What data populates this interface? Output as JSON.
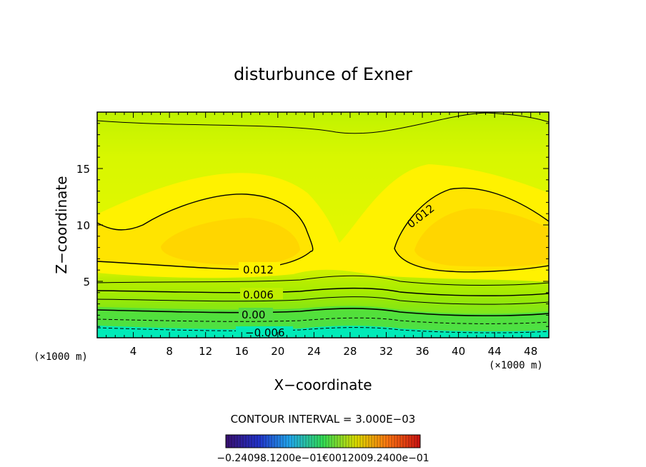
{
  "chart_data": {
    "type": "contour",
    "title": "disturbunce of Exner",
    "xlabel": "X−coordinate",
    "ylabel": "Z−coordinate",
    "x_unit_left": "(×1000 m)",
    "x_unit_right": "(×1000 m)",
    "xlim": [
      0,
      50
    ],
    "ylim": [
      0,
      20
    ],
    "x_ticks": [
      4,
      8,
      12,
      16,
      20,
      24,
      28,
      32,
      36,
      40,
      44,
      48
    ],
    "y_ticks": [
      5,
      10,
      15
    ],
    "contour_interval_label": "CONTOUR INTERVAL = 3.000E−03",
    "contour_labels": [
      {
        "text": "0.012",
        "x": 18,
        "z": 6.2
      },
      {
        "text": "0.012",
        "x": 36.3,
        "z": 10.6
      },
      {
        "text": "0.006",
        "x": 18.2,
        "z": 3.7
      },
      {
        "text": "0.00",
        "x": 17.4,
        "z": 2.0
      },
      {
        "text": "−0.006",
        "x": 18.5,
        "z": 0.4
      }
    ],
    "colorbar": {
      "labels_text": "−0.24098.1200e−01€0012009.2400e−01",
      "range": [
        -0.024,
        0.024
      ]
    },
    "colors": {
      "bottom": "#00e8b0",
      "green": "#33dd55",
      "yellowgreen": "#c4f200",
      "yellow": "#ffee00",
      "peak": "#ffd800",
      "frame": "#000000"
    }
  }
}
